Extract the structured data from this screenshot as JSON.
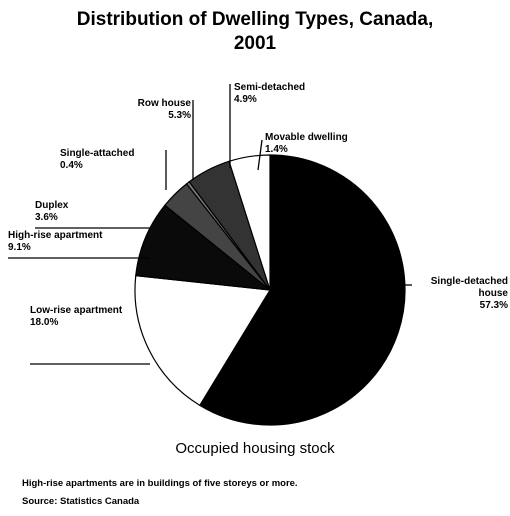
{
  "chart_data": {
    "type": "pie",
    "title": "Distribution of Dwelling Types, Canada, 2001",
    "xlabel": "Occupied housing stock",
    "notes": [
      "High-rise apartments are in buildings of five storeys or more.",
      "Source: Statistics Canada"
    ],
    "categories": [
      "Movable dwelling",
      "Single-detached house",
      "Low-rise apartment",
      "High-rise apartment",
      "Duplex",
      "Single-attached",
      "Row house",
      "Semi-detached"
    ],
    "values": [
      1.4,
      57.3,
      18.0,
      9.1,
      3.6,
      0.4,
      5.3,
      4.9
    ],
    "value_labels": [
      "1.4%",
      "57.3%",
      "18.0%",
      "9.1%",
      "3.6%",
      "0.4%",
      "5.3%",
      "4.9%"
    ],
    "colors": [
      "#000000",
      "#000000",
      "#ffffff",
      "#0a0a0a",
      "#444444",
      "#777777",
      "#333333",
      "#ffffff"
    ]
  }
}
